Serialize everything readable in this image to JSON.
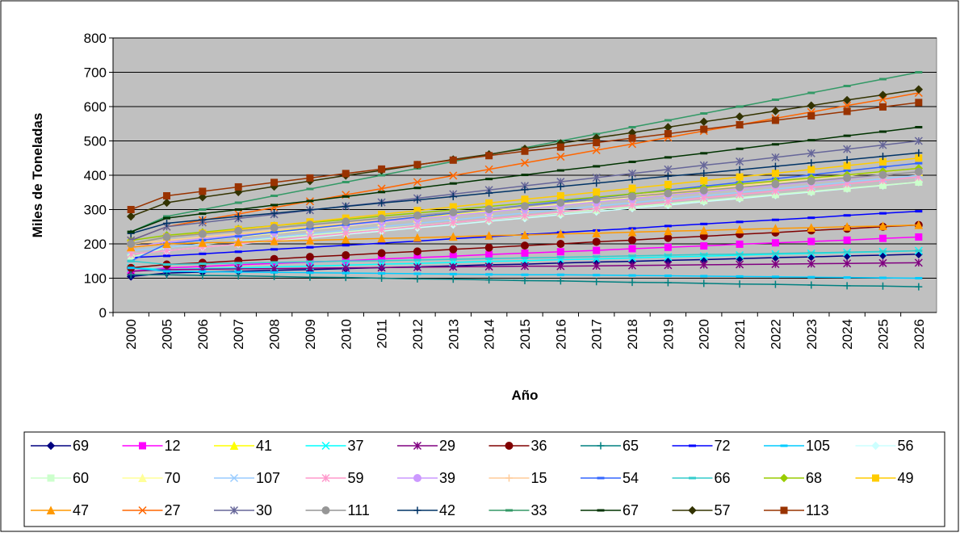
{
  "chart_data": {
    "type": "line",
    "x_label": "Año",
    "y_label": "Miles de Toneladas",
    "categories": [
      "2000",
      "2005",
      "2006",
      "2007",
      "2008",
      "2009",
      "2010",
      "2011",
      "2012",
      "2013",
      "2014",
      "2015",
      "2016",
      "2017",
      "2018",
      "2019",
      "2020",
      "2021",
      "2022",
      "2023",
      "2024",
      "2025",
      "2026"
    ],
    "ylim": [
      0,
      800
    ],
    "yticks": [
      0,
      100,
      200,
      300,
      400,
      500,
      600,
      700,
      800
    ],
    "grid": true,
    "series": [
      {
        "name": "69",
        "color": "#000080",
        "marker": "diamond",
        "values": [
          105,
          115,
          118,
          120,
          123,
          125,
          128,
          131,
          133,
          136,
          139,
          141,
          144,
          147,
          149,
          152,
          154,
          157,
          160,
          162,
          165,
          167,
          170
        ]
      },
      {
        "name": "12",
        "color": "#FF00FF",
        "marker": "square",
        "values": [
          120,
          130,
          134,
          139,
          143,
          147,
          151,
          156,
          160,
          164,
          169,
          173,
          177,
          181,
          186,
          190,
          194,
          199,
          203,
          207,
          211,
          216,
          220
        ]
      },
      {
        "name": "41",
        "color": "#FFFF00",
        "marker": "triangle",
        "values": [
          200,
          210,
          220,
          229,
          239,
          248,
          258,
          267,
          277,
          286,
          296,
          305,
          315,
          324,
          334,
          343,
          353,
          362,
          372,
          381,
          391,
          400,
          410
        ]
      },
      {
        "name": "37",
        "color": "#00FFFF",
        "marker": "x",
        "values": [
          130,
          125,
          128,
          130,
          133,
          135,
          138,
          141,
          143,
          146,
          149,
          151,
          154,
          156,
          159,
          162,
          164,
          167,
          170,
          172,
          175,
          177,
          180
        ]
      },
      {
        "name": "29",
        "color": "#800080",
        "marker": "star",
        "values": [
          120,
          125,
          126,
          127,
          128,
          129,
          130,
          131,
          132,
          133,
          134,
          135,
          135,
          136,
          137,
          138,
          139,
          140,
          141,
          142,
          143,
          144,
          145
        ]
      },
      {
        "name": "36",
        "color": "#800000",
        "marker": "circle",
        "values": [
          130,
          140,
          145,
          151,
          156,
          162,
          167,
          173,
          178,
          184,
          189,
          195,
          200,
          206,
          211,
          217,
          222,
          228,
          233,
          239,
          244,
          250,
          255
        ]
      },
      {
        "name": "65",
        "color": "#008080",
        "marker": "plus",
        "values": [
          110,
          110,
          108,
          107,
          105,
          103,
          102,
          100,
          98,
          97,
          95,
          93,
          92,
          90,
          88,
          87,
          85,
          83,
          82,
          80,
          78,
          77,
          75
        ]
      },
      {
        "name": "72",
        "color": "#0000FF",
        "marker": "dash",
        "values": [
          160,
          165,
          171,
          177,
          184,
          190,
          196,
          202,
          208,
          215,
          221,
          227,
          233,
          239,
          245,
          252,
          258,
          264,
          270,
          276,
          283,
          289,
          295
        ]
      },
      {
        "name": "105",
        "color": "#00CCFF",
        "marker": "dash",
        "values": [
          130,
          120,
          119,
          118,
          117,
          116,
          115,
          114,
          113,
          112,
          111,
          110,
          110,
          109,
          108,
          107,
          106,
          105,
          104,
          103,
          102,
          101,
          100
        ]
      },
      {
        "name": "56",
        "color": "#CCFFFF",
        "marker": "diamond",
        "values": [
          170,
          180,
          190,
          199,
          209,
          218,
          228,
          237,
          247,
          256,
          266,
          275,
          285,
          294,
          304,
          313,
          323,
          332,
          342,
          351,
          361,
          370,
          380
        ]
      },
      {
        "name": "60",
        "color": "#CCFFCC",
        "marker": "square",
        "values": [
          160,
          190,
          199,
          208,
          217,
          226,
          235,
          244,
          253,
          262,
          271,
          280,
          290,
          299,
          308,
          317,
          326,
          335,
          344,
          353,
          362,
          371,
          380
        ]
      },
      {
        "name": "70",
        "color": "#FFFF99",
        "marker": "triangle",
        "values": [
          190,
          200,
          210,
          221,
          231,
          242,
          252,
          263,
          273,
          284,
          294,
          305,
          315,
          326,
          336,
          347,
          357,
          368,
          378,
          389,
          399,
          410,
          420
        ]
      },
      {
        "name": "107",
        "color": "#99CCFF",
        "marker": "x",
        "values": [
          180,
          190,
          200,
          210,
          220,
          230,
          240,
          250,
          260,
          270,
          280,
          290,
          300,
          310,
          320,
          330,
          340,
          350,
          360,
          370,
          380,
          390,
          400
        ]
      },
      {
        "name": "59",
        "color": "#FF99CC",
        "marker": "star",
        "values": [
          170,
          180,
          190,
          200,
          211,
          221,
          231,
          241,
          252,
          262,
          272,
          282,
          293,
          303,
          313,
          323,
          334,
          344,
          354,
          364,
          375,
          385,
          395
        ]
      },
      {
        "name": "39",
        "color": "#CC99FF",
        "marker": "circle",
        "values": [
          190,
          205,
          215,
          225,
          234,
          244,
          254,
          264,
          273,
          283,
          293,
          303,
          312,
          322,
          332,
          342,
          351,
          361,
          371,
          381,
          390,
          400,
          410
        ]
      },
      {
        "name": "15",
        "color": "#FFCC99",
        "marker": "plus",
        "values": [
          200,
          210,
          220,
          230,
          240,
          250,
          260,
          270,
          280,
          290,
          300,
          310,
          320,
          330,
          340,
          350,
          360,
          370,
          380,
          390,
          400,
          410,
          420
        ]
      },
      {
        "name": "54",
        "color": "#3366FF",
        "marker": "dash",
        "values": [
          150,
          200,
          211,
          222,
          234,
          245,
          256,
          267,
          278,
          290,
          301,
          312,
          323,
          334,
          345,
          357,
          368,
          379,
          390,
          401,
          413,
          424,
          435
        ]
      },
      {
        "name": "66",
        "color": "#33CCCC",
        "marker": "dash",
        "values": [
          150,
          140,
          142,
          144,
          146,
          148,
          150,
          151,
          153,
          155,
          157,
          159,
          161,
          163,
          165,
          167,
          169,
          170,
          172,
          174,
          176,
          178,
          180
        ]
      },
      {
        "name": "68",
        "color": "#99CC00",
        "marker": "diamond",
        "values": [
          210,
          225,
          234,
          244,
          253,
          262,
          271,
          281,
          290,
          299,
          309,
          318,
          327,
          336,
          346,
          355,
          364,
          374,
          383,
          392,
          401,
          411,
          420
        ]
      },
      {
        "name": "49",
        "color": "#FFCC00",
        "marker": "square",
        "values": [
          200,
          220,
          231,
          242,
          253,
          264,
          275,
          286,
          297,
          308,
          319,
          330,
          340,
          351,
          362,
          373,
          384,
          395,
          406,
          417,
          428,
          439,
          450
        ]
      },
      {
        "name": "47",
        "color": "#FF9900",
        "marker": "triangle",
        "values": [
          190,
          200,
          203,
          205,
          208,
          210,
          213,
          216,
          218,
          221,
          224,
          226,
          229,
          231,
          234,
          237,
          239,
          242,
          245,
          247,
          250,
          252,
          255
        ]
      },
      {
        "name": "27",
        "color": "#FF6600",
        "marker": "x",
        "values": [
          210,
          250,
          269,
          287,
          306,
          324,
          343,
          361,
          380,
          399,
          417,
          436,
          454,
          473,
          491,
          510,
          529,
          547,
          566,
          584,
          603,
          621,
          640
        ]
      },
      {
        "name": "30",
        "color": "#666699",
        "marker": "star",
        "values": [
          210,
          250,
          262,
          274,
          286,
          298,
          310,
          321,
          333,
          345,
          357,
          369,
          381,
          393,
          405,
          417,
          429,
          440,
          452,
          464,
          476,
          488,
          500
        ]
      },
      {
        "name": "111",
        "color": "#969696",
        "marker": "circle",
        "values": [
          200,
          220,
          229,
          238,
          247,
          256,
          265,
          274,
          283,
          292,
          301,
          310,
          320,
          329,
          338,
          347,
          356,
          365,
          374,
          383,
          392,
          401,
          410
        ]
      },
      {
        "name": "42",
        "color": "#003366",
        "marker": "plus",
        "values": [
          230,
          260,
          270,
          280,
          289,
          299,
          309,
          319,
          328,
          338,
          348,
          358,
          367,
          377,
          387,
          397,
          406,
          416,
          426,
          436,
          445,
          455,
          465
        ]
      },
      {
        "name": "33",
        "color": "#339966",
        "marker": "dash",
        "values": [
          235,
          280,
          300,
          320,
          340,
          360,
          380,
          400,
          420,
          440,
          460,
          480,
          500,
          520,
          540,
          560,
          580,
          600,
          620,
          640,
          660,
          680,
          700
        ]
      },
      {
        "name": "67",
        "color": "#003300",
        "marker": "dash",
        "values": [
          235,
          275,
          288,
          300,
          313,
          325,
          338,
          351,
          363,
          376,
          389,
          401,
          414,
          426,
          439,
          452,
          464,
          477,
          490,
          502,
          515,
          527,
          540
        ]
      },
      {
        "name": "57",
        "color": "#333300",
        "marker": "diamond",
        "values": [
          280,
          320,
          336,
          351,
          367,
          383,
          399,
          414,
          430,
          446,
          461,
          477,
          493,
          509,
          524,
          540,
          556,
          571,
          587,
          603,
          619,
          634,
          650
        ]
      },
      {
        "name": "113",
        "color": "#993300",
        "marker": "square",
        "values": [
          300,
          340,
          353,
          366,
          379,
          392,
          405,
          418,
          431,
          444,
          457,
          470,
          482,
          495,
          508,
          521,
          534,
          547,
          560,
          573,
          586,
          599,
          612
        ]
      }
    ]
  }
}
